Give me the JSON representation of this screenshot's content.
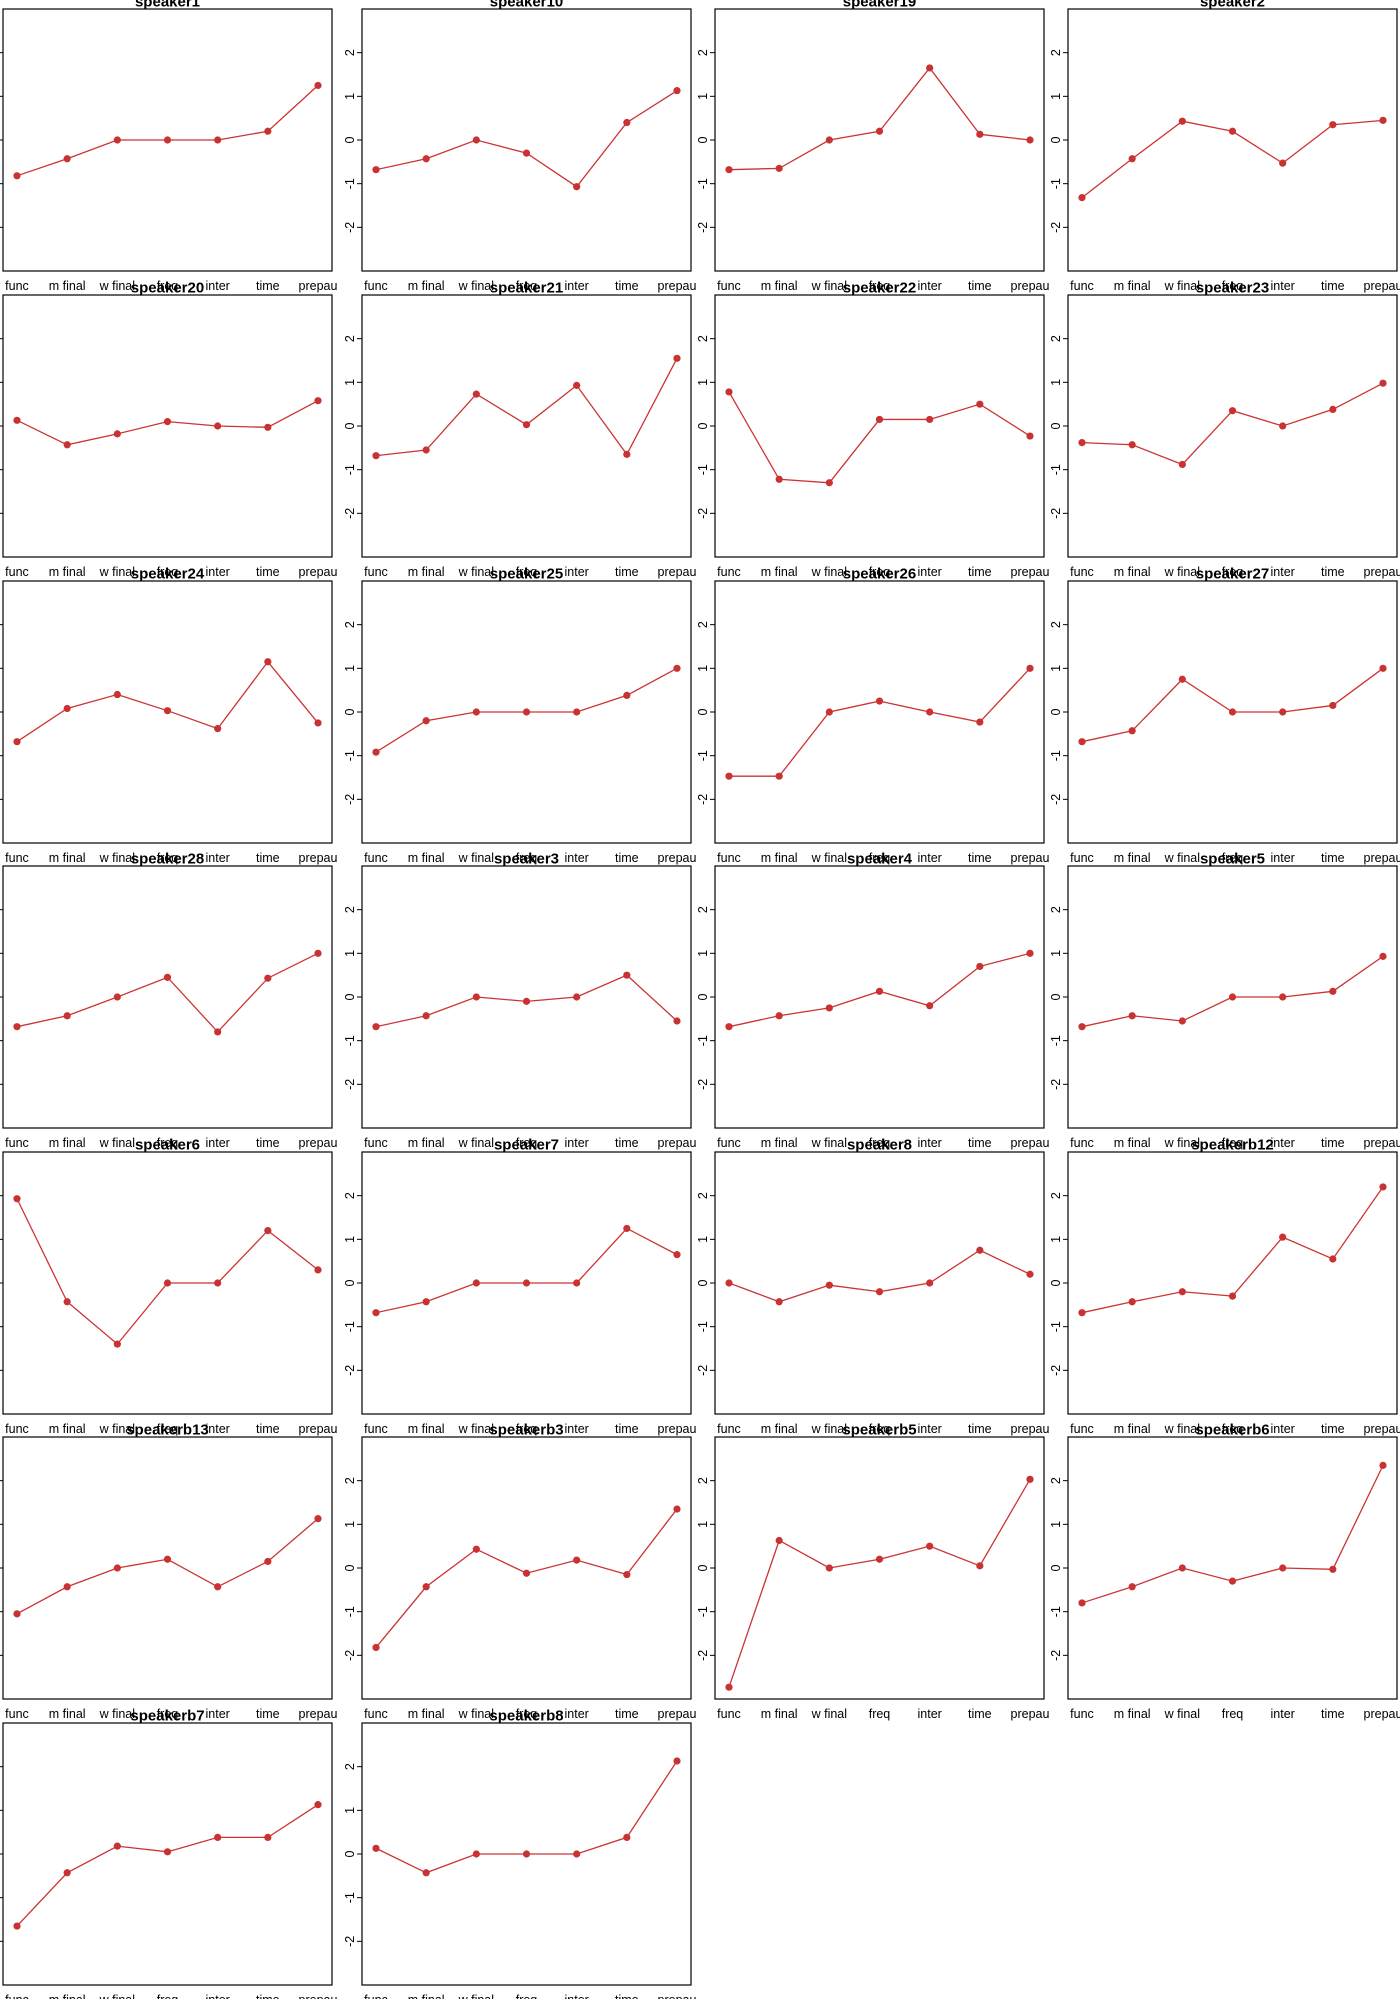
{
  "chart_data": {
    "type": "line",
    "categories": [
      "func",
      "m final",
      "w final",
      "freq",
      "inter",
      "time",
      "prepau"
    ],
    "y_ticks": [
      "-2",
      "-1",
      "0",
      "1",
      "2"
    ],
    "ylim": [
      -3,
      3
    ],
    "grid": false,
    "legend": "none",
    "colors": {
      "line": "#cc3333",
      "point": "#c83232",
      "frame": "#000000"
    },
    "panels": [
      {
        "title": "speaker1",
        "values": [
          -0.82,
          -0.43,
          0,
          0,
          0,
          0.2,
          1.25
        ]
      },
      {
        "title": "speaker10",
        "values": [
          -0.68,
          -0.43,
          0,
          -0.3,
          -1.07,
          0.4,
          1.13
        ]
      },
      {
        "title": "speaker19",
        "values": [
          -0.68,
          -0.65,
          0,
          0.2,
          1.65,
          0.13,
          0
        ]
      },
      {
        "title": "speaker2",
        "values": [
          -1.32,
          -0.43,
          0.43,
          0.2,
          -0.53,
          0.35,
          0.45
        ]
      },
      {
        "title": "speaker20",
        "values": [
          0.13,
          -0.43,
          -0.18,
          0.1,
          0,
          -0.03,
          0.58
        ]
      },
      {
        "title": "speaker21",
        "values": [
          -0.68,
          -0.55,
          0.73,
          0.03,
          0.93,
          -0.65,
          1.55
        ]
      },
      {
        "title": "speaker22",
        "values": [
          0.78,
          -1.22,
          -1.3,
          0.15,
          0.15,
          0.5,
          -0.23
        ]
      },
      {
        "title": "speaker23",
        "values": [
          -0.38,
          -0.43,
          -0.88,
          0.35,
          0,
          0.38,
          0.98
        ]
      },
      {
        "title": "speaker24",
        "values": [
          -0.68,
          0.08,
          0.4,
          0.03,
          -0.38,
          1.15,
          -0.25
        ]
      },
      {
        "title": "speaker25",
        "values": [
          -0.92,
          -0.2,
          0,
          0,
          0,
          0.38,
          1.0
        ]
      },
      {
        "title": "speaker26",
        "values": [
          -1.47,
          -1.47,
          0,
          0.25,
          0,
          -0.23,
          1.0
        ]
      },
      {
        "title": "speaker27",
        "values": [
          -0.68,
          -0.43,
          0.75,
          0,
          0,
          0.15,
          1.0
        ]
      },
      {
        "title": "speaker28",
        "values": [
          -0.68,
          -0.43,
          0,
          0.45,
          -0.8,
          0.43,
          1.0
        ]
      },
      {
        "title": "speaker3",
        "values": [
          -0.68,
          -0.43,
          0,
          -0.1,
          0,
          0.5,
          -0.55
        ]
      },
      {
        "title": "speaker4",
        "values": [
          -0.68,
          -0.43,
          -0.25,
          0.13,
          -0.2,
          0.7,
          1.0
        ]
      },
      {
        "title": "speaker5",
        "values": [
          -0.68,
          -0.43,
          -0.55,
          0,
          0,
          0.13,
          0.93
        ]
      },
      {
        "title": "speaker6",
        "values": [
          1.93,
          -0.43,
          -1.4,
          0,
          0,
          1.2,
          0.3
        ]
      },
      {
        "title": "speaker7",
        "values": [
          -0.68,
          -0.43,
          0,
          0,
          0,
          1.25,
          0.65
        ]
      },
      {
        "title": "speaker8",
        "values": [
          0,
          -0.43,
          -0.05,
          -0.2,
          0,
          0.75,
          0.2
        ]
      },
      {
        "title": "speakerb12",
        "values": [
          -0.68,
          -0.43,
          -0.2,
          -0.3,
          1.05,
          0.55,
          2.2
        ]
      },
      {
        "title": "speakerb13",
        "values": [
          -1.05,
          -0.43,
          0,
          0.2,
          -0.43,
          0.15,
          1.13
        ]
      },
      {
        "title": "speakerb3",
        "values": [
          -1.82,
          -0.43,
          0.43,
          -0.12,
          0.18,
          -0.15,
          1.35
        ]
      },
      {
        "title": "speakerb5",
        "values": [
          -2.73,
          0.63,
          0,
          0.2,
          0.5,
          0.05,
          2.03
        ]
      },
      {
        "title": "speakerb6",
        "values": [
          -0.8,
          -0.43,
          0,
          -0.3,
          0,
          -0.03,
          2.35
        ]
      },
      {
        "title": "speakerb7",
        "values": [
          -1.65,
          -0.43,
          0.18,
          0.05,
          0.38,
          0.38,
          1.13
        ]
      },
      {
        "title": "speakerb8",
        "values": [
          0.13,
          -0.43,
          0,
          0,
          0,
          0.38,
          2.13
        ]
      }
    ]
  }
}
